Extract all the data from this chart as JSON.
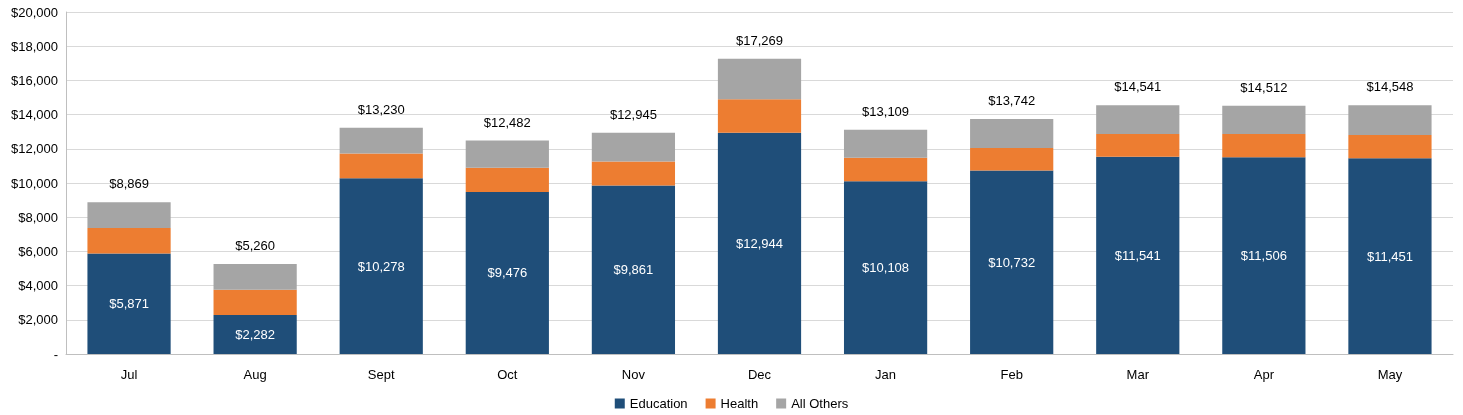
{
  "chart_data": {
    "type": "bar",
    "stacked": true,
    "categories": [
      "Jul",
      "Aug",
      "Sept",
      "Oct",
      "Nov",
      "Dec",
      "Jan",
      "Feb",
      "Mar",
      "Apr",
      "May"
    ],
    "series": [
      {
        "name": "Education",
        "color": "#1f4e79",
        "values": [
          5871,
          2282,
          10278,
          9476,
          9861,
          12944,
          10108,
          10732,
          11541,
          11506,
          11451
        ],
        "value_labels": [
          "$5,871",
          "$2,282",
          "$10,278",
          "$9,476",
          "$9,861",
          "$12,944",
          "$10,108",
          "$10,732",
          "$11,541",
          "$11,506",
          "$11,451"
        ]
      },
      {
        "name": "Health",
        "color": "#ed7d31",
        "values": [
          1500,
          1470,
          1450,
          1420,
          1400,
          1950,
          1370,
          1320,
          1330,
          1360,
          1360
        ]
      },
      {
        "name": "All Others",
        "color": "#a5a5a5",
        "values": [
          1498,
          1508,
          1502,
          1586,
          1684,
          2375,
          1631,
          1690,
          1670,
          1646,
          1737
        ]
      }
    ],
    "totals": [
      "$8,869",
      "$5,260",
      "$13,230",
      "$12,482",
      "$12,945",
      "$17,269",
      "$13,109",
      "$13,742",
      "$14,541",
      "$14,512",
      "$14,548"
    ],
    "ylim": [
      0,
      20000
    ],
    "yticks": [
      {
        "value": 0,
        "label": "-"
      },
      {
        "value": 2000,
        "label": "$2,000"
      },
      {
        "value": 4000,
        "label": "$4,000"
      },
      {
        "value": 6000,
        "label": "$6,000"
      },
      {
        "value": 8000,
        "label": "$8,000"
      },
      {
        "value": 10000,
        "label": "$10,000"
      },
      {
        "value": 12000,
        "label": "$12,000"
      },
      {
        "value": 14000,
        "label": "$14,000"
      },
      {
        "value": 16000,
        "label": "$16,000"
      },
      {
        "value": 18000,
        "label": "$18,000"
      },
      {
        "value": 20000,
        "label": "$20,000"
      }
    ],
    "grid": "y",
    "legend": "bottom"
  }
}
